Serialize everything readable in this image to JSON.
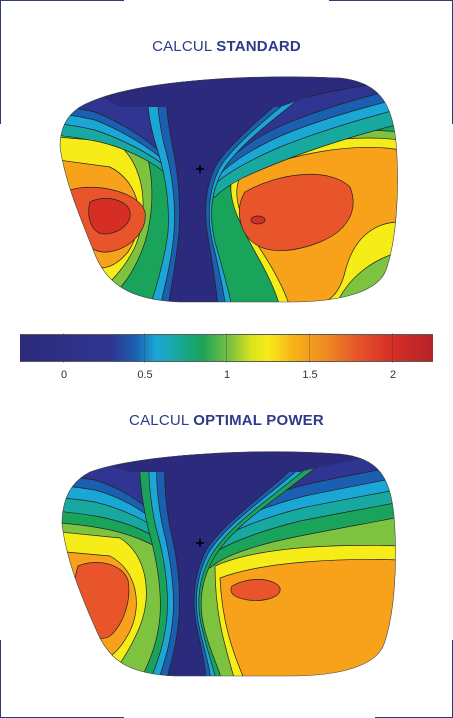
{
  "titles": {
    "standard": {
      "prefix": "CALCUL",
      "emphasis": "STANDARD"
    },
    "optimal": {
      "prefix": "CALCUL",
      "emphasis": "OPTIMAL POWER"
    }
  },
  "scale": {
    "labels": [
      "0",
      "0.5",
      "1",
      "1.5",
      "2"
    ],
    "colors": {
      "c0": "#2b2a7c",
      "c1": "#2f3590",
      "c2": "#1b5fb0",
      "c3": "#1aa7d6",
      "c4": "#17a8a0",
      "c5": "#1aa35a",
      "c6": "#7ec340",
      "c7": "#f6ec18",
      "c8": "#f7a21a",
      "c9": "#e8552b",
      "c10": "#d62e24"
    }
  },
  "markers": {
    "cross_icon": "plus"
  }
}
